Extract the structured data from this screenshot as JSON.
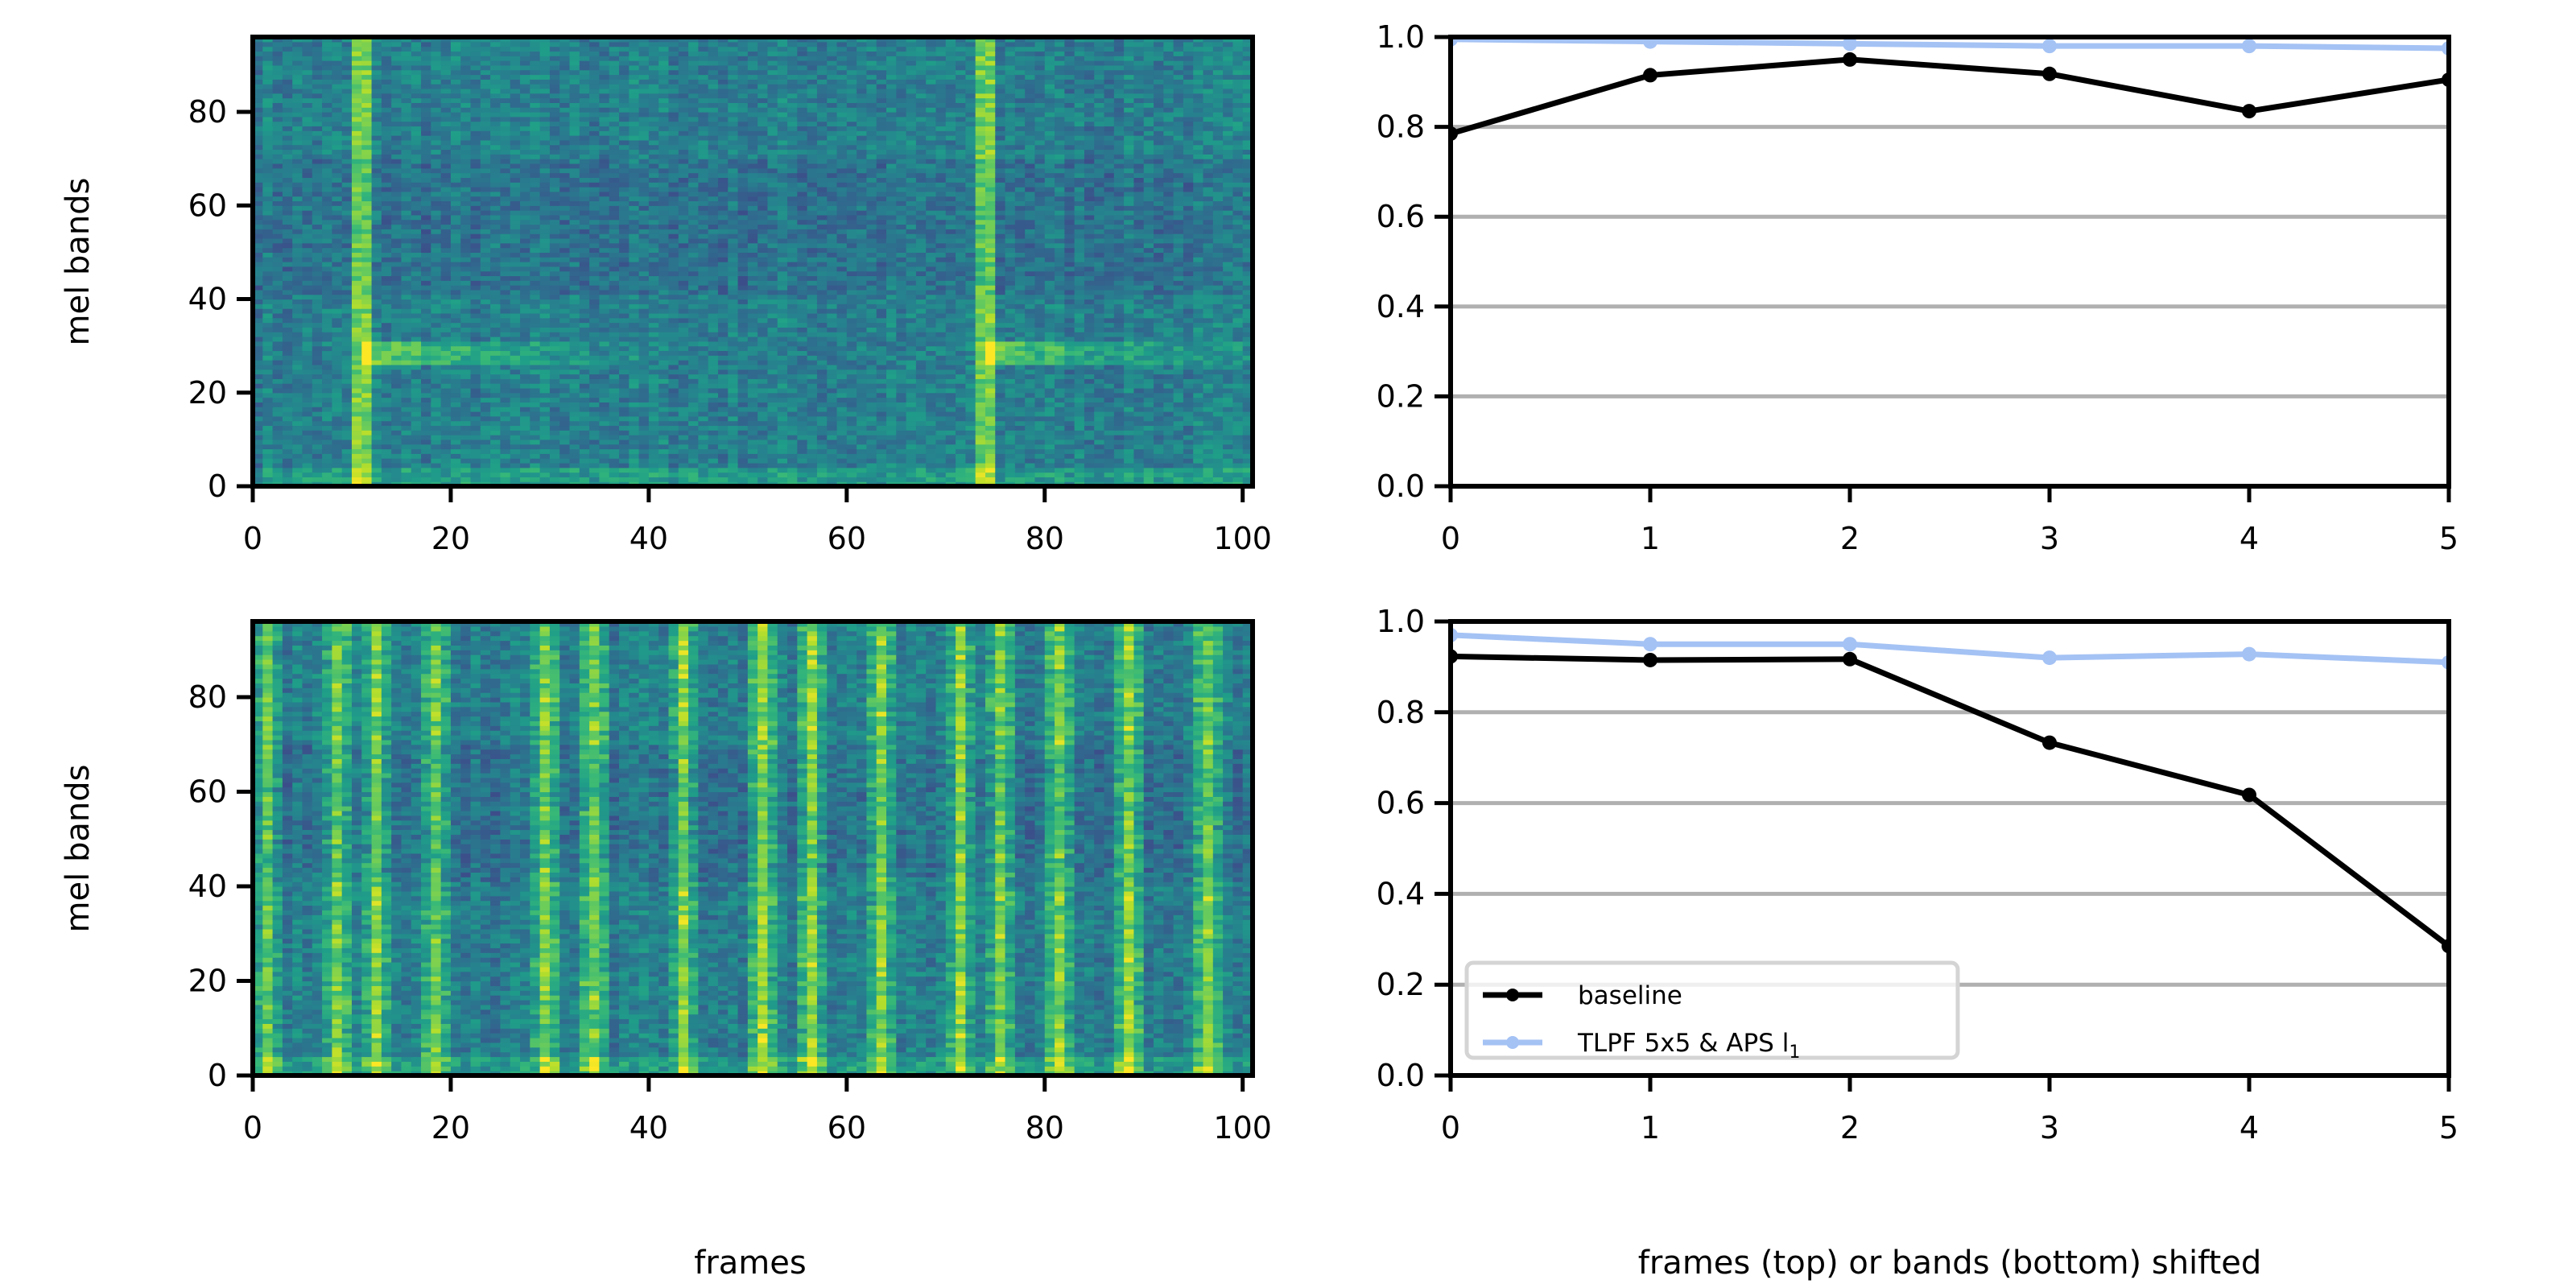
{
  "chart_data": [
    {
      "type": "heatmap",
      "panel": "top-left",
      "colormap": "viridis",
      "xlim": [
        0,
        101
      ],
      "ylim": [
        0,
        96
      ],
      "xticks": [
        "0",
        "20",
        "40",
        "60",
        "80",
        "100"
      ],
      "yticks": [
        "0",
        "20",
        "40",
        "60",
        "80"
      ],
      "xlabel": "",
      "ylabel": "mel bands",
      "bright_onset_frames": [
        11,
        74
      ],
      "bright_band": 28
    },
    {
      "type": "line",
      "panel": "top-right",
      "x": [
        0,
        1,
        2,
        3,
        4,
        5
      ],
      "xlim": [
        0,
        5
      ],
      "ylim": [
        0,
        1.0
      ],
      "xticks": [
        "0",
        "1",
        "2",
        "3",
        "4",
        "5"
      ],
      "yticks": [
        "0.0",
        "0.2",
        "0.4",
        "0.6",
        "0.8",
        "1.0"
      ],
      "grid": "horizontal",
      "series": [
        {
          "name": "baseline",
          "color": "#000000",
          "values": [
            0.785,
            0.915,
            0.95,
            0.918,
            0.835,
            0.905
          ]
        },
        {
          "name": "TLPF 5x5 & APS l1",
          "color": "#a4c2f4",
          "values": [
            0.995,
            0.99,
            0.985,
            0.98,
            0.98,
            0.975
          ]
        }
      ]
    },
    {
      "type": "heatmap",
      "panel": "bottom-left",
      "colormap": "viridis",
      "xlim": [
        0,
        101
      ],
      "ylim": [
        0,
        96
      ],
      "xticks": [
        "0",
        "20",
        "40",
        "60",
        "80",
        "100"
      ],
      "yticks": [
        "0",
        "20",
        "40",
        "60",
        "80"
      ],
      "xlabel": "frames",
      "ylabel": "mel bands",
      "bright_frames": [
        1,
        8,
        12,
        18,
        29,
        34,
        43,
        51,
        56,
        63,
        71,
        75,
        81,
        88,
        96
      ]
    },
    {
      "type": "line",
      "panel": "bottom-right",
      "x": [
        0,
        1,
        2,
        3,
        4,
        5
      ],
      "xlim": [
        0,
        5
      ],
      "ylim": [
        0,
        1.0
      ],
      "xticks": [
        "0",
        "1",
        "2",
        "3",
        "4",
        "5"
      ],
      "yticks": [
        "0.0",
        "0.2",
        "0.4",
        "0.6",
        "0.8",
        "1.0"
      ],
      "xlabel": "frames (top) or bands (bottom) shifted",
      "grid": "horizontal",
      "legend": {
        "position": "lower-left",
        "entries": [
          "baseline",
          "TLPF 5x5 & APS l",
          "1"
        ]
      },
      "series": [
        {
          "name": "baseline",
          "color": "#000000",
          "values": [
            0.923,
            0.915,
            0.917,
            0.733,
            0.618,
            0.285
          ]
        },
        {
          "name": "TLPF 5x5 & APS l1",
          "color": "#a4c2f4",
          "values": [
            0.97,
            0.95,
            0.95,
            0.92,
            0.928,
            0.91
          ]
        }
      ]
    }
  ]
}
